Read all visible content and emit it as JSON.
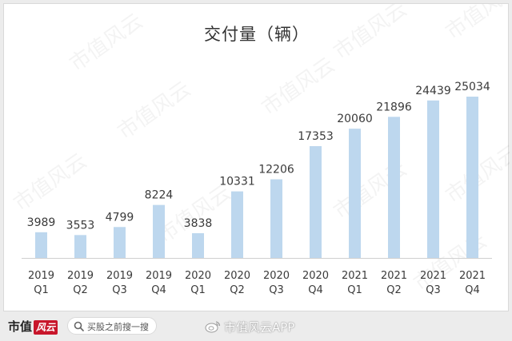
{
  "chart_data": {
    "type": "bar",
    "title": "交付量（辆）",
    "categories": [
      [
        "2019",
        "Q1"
      ],
      [
        "2019",
        "Q2"
      ],
      [
        "2019",
        "Q3"
      ],
      [
        "2019",
        "Q4"
      ],
      [
        "2020",
        "Q1"
      ],
      [
        "2020",
        "Q2"
      ],
      [
        "2020",
        "Q3"
      ],
      [
        "2020",
        "Q4"
      ],
      [
        "2021",
        "Q1"
      ],
      [
        "2021",
        "Q2"
      ],
      [
        "2021",
        "Q3"
      ],
      [
        "2021",
        "Q4"
      ]
    ],
    "values": [
      3989,
      3553,
      4799,
      8224,
      3838,
      10331,
      12206,
      17353,
      20060,
      21896,
      24439,
      25034
    ],
    "ylim": [
      0,
      25034
    ],
    "bar_color": "#bdd7ee",
    "grid": false,
    "legend": "none"
  },
  "watermark_text": "市值风云",
  "footer": {
    "brand_text": "市值",
    "brand_seal_text": "风云",
    "search_text": "买股之前搜一搜",
    "weibo_text": "市值风云APP"
  },
  "colors": {
    "brand_red": "#c8162b",
    "background": "#ececec"
  }
}
